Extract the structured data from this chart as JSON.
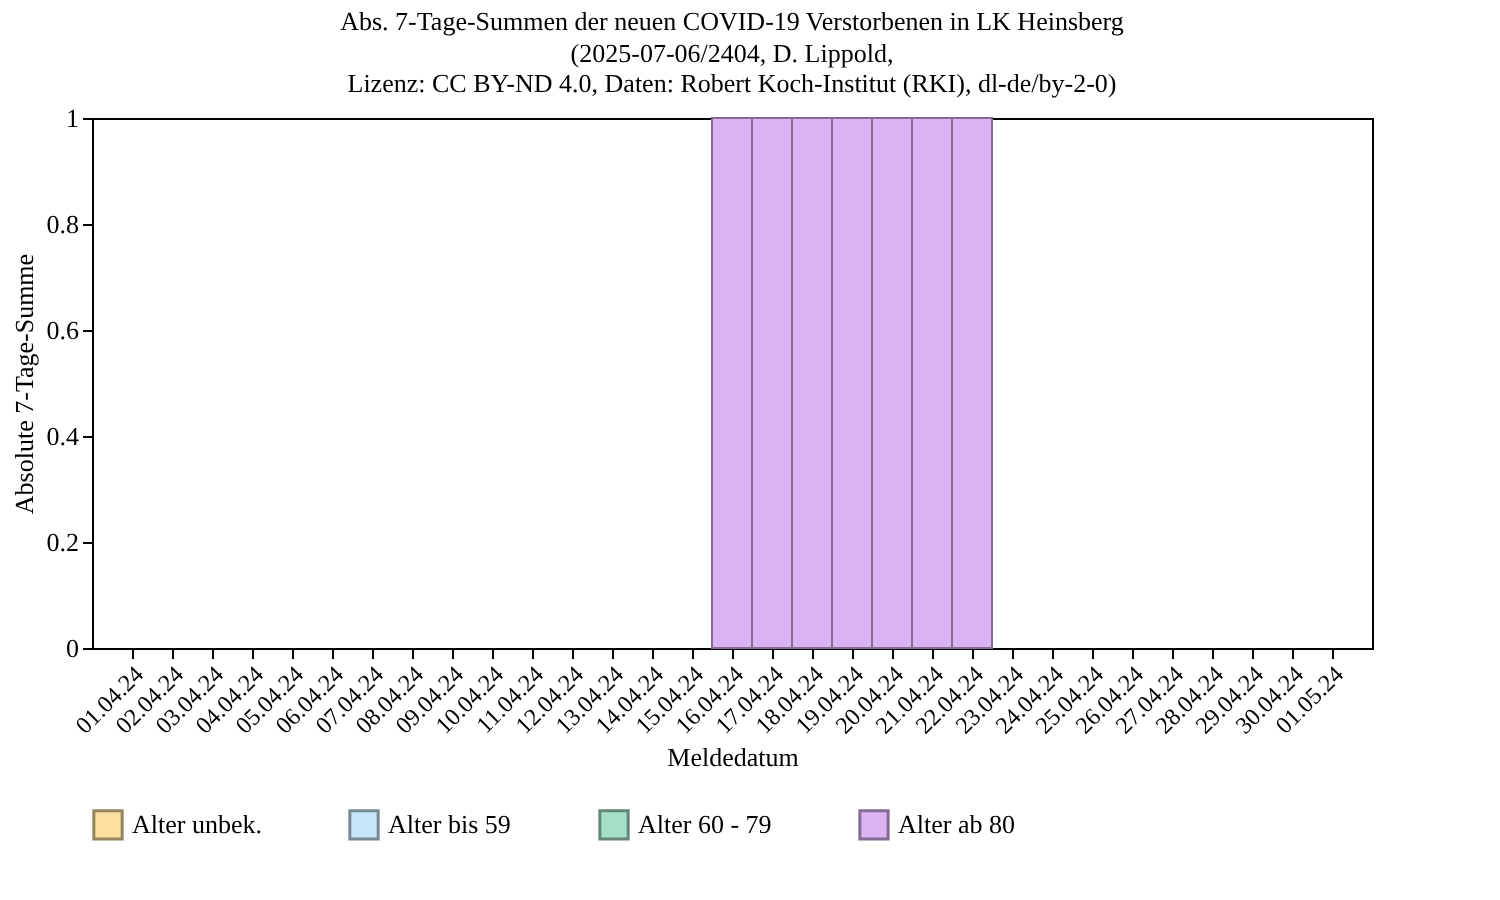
{
  "chart_data": {
    "type": "bar",
    "stacked": true,
    "title": "Abs. 7-Tage-Summen der neuen COVID-19 Verstorbenen in LK Heinsberg",
    "subtitle": "(2025-07-06/2404, D. Lippold,\nLizenz: CC BY-ND 4.0, Daten: Robert Koch-Institut (RKI), dl-de/by-2-0)",
    "xlabel": "Meldedatum",
    "ylabel": "Absolute 7-Tage-Summe",
    "categories": [
      "01.04.24",
      "02.04.24",
      "03.04.24",
      "04.04.24",
      "05.04.24",
      "06.04.24",
      "07.04.24",
      "08.04.24",
      "09.04.24",
      "10.04.24",
      "11.04.24",
      "12.04.24",
      "13.04.24",
      "14.04.24",
      "15.04.24",
      "16.04.24",
      "17.04.24",
      "18.04.24",
      "19.04.24",
      "20.04.24",
      "21.04.24",
      "22.04.24",
      "23.04.24",
      "24.04.24",
      "25.04.24",
      "26.04.24",
      "27.04.24",
      "28.04.24",
      "29.04.24",
      "30.04.24",
      "01.05.24"
    ],
    "series": [
      {
        "name": "Alter unbek.",
        "color": "#fbdf9d",
        "values": [
          0,
          0,
          0,
          0,
          0,
          0,
          0,
          0,
          0,
          0,
          0,
          0,
          0,
          0,
          0,
          0,
          0,
          0,
          0,
          0,
          0,
          0,
          0,
          0,
          0,
          0,
          0,
          0,
          0,
          0,
          0
        ]
      },
      {
        "name": "Alter bis 59",
        "color": "#c6e6f8",
        "values": [
          0,
          0,
          0,
          0,
          0,
          0,
          0,
          0,
          0,
          0,
          0,
          0,
          0,
          0,
          0,
          0,
          0,
          0,
          0,
          0,
          0,
          0,
          0,
          0,
          0,
          0,
          0,
          0,
          0,
          0,
          0
        ]
      },
      {
        "name": "Alter 60 - 79",
        "color": "#a6e0c8",
        "values": [
          0,
          0,
          0,
          0,
          0,
          0,
          0,
          0,
          0,
          0,
          0,
          0,
          0,
          0,
          0,
          0,
          0,
          0,
          0,
          0,
          0,
          0,
          0,
          0,
          0,
          0,
          0,
          0,
          0,
          0,
          0
        ]
      },
      {
        "name": "Alter ab 80",
        "color": "#dcb3f2",
        "values": [
          0,
          0,
          0,
          0,
          0,
          0,
          0,
          0,
          0,
          0,
          0,
          0,
          0,
          0,
          0,
          1,
          1,
          1,
          1,
          1,
          1,
          1,
          0,
          0,
          0,
          0,
          0,
          0,
          0,
          0,
          0
        ]
      }
    ],
    "ylim": [
      0,
      1
    ],
    "yticks": [
      0,
      0.2,
      0.4,
      0.6,
      0.8,
      1
    ],
    "grid": false,
    "legend": "bottom"
  }
}
